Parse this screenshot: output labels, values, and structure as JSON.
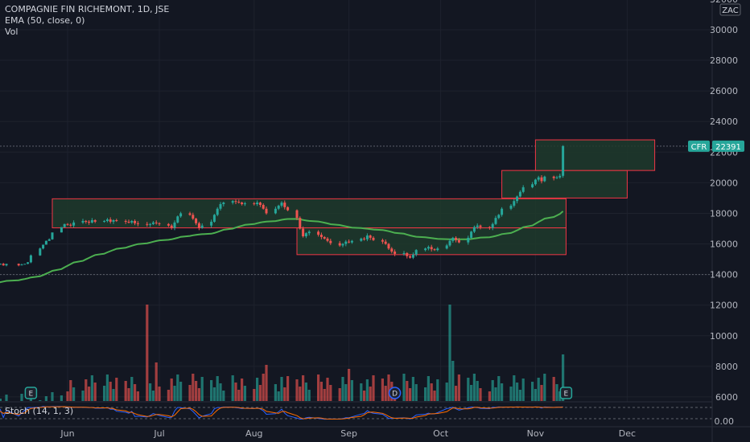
{
  "header": {
    "symbol_line": "COMPAGNIE FIN RICHEMONT, 1D, JSE",
    "ema_label": "EMA (50, close, 0)",
    "vol_label": "Vol",
    "stoch_label": "Stoch (14, 1, 3)"
  },
  "price_axis": {
    "currency": "ZAC",
    "ticks": [
      "32000",
      "30000",
      "28000",
      "26000",
      "24000",
      "22000",
      "20000",
      "18000",
      "16000",
      "14000",
      "12000",
      "10000",
      "8000",
      "6000"
    ]
  },
  "stoch_axis": {
    "ticks": [
      "0.00"
    ]
  },
  "last_price": {
    "symbol": "CFR",
    "value": "22391"
  },
  "colors": {
    "up": "#26a69a",
    "down": "#ef5350",
    "ema": "#4caf50",
    "box_stroke": "#f23645",
    "box_fill": "#1e3a2c",
    "stoch_k": "#2962ff",
    "stoch_d": "#ff6d00",
    "background": "#131722",
    "grid": "#1e222d"
  },
  "event_markers": [
    {
      "label": "E",
      "type": "earnings",
      "date": "2022-05-20"
    },
    {
      "label": "D",
      "type": "dividend",
      "date": "2022-09-16"
    },
    {
      "label": "E",
      "type": "earnings",
      "date": "2022-11-11"
    }
  ],
  "chart_data": {
    "type": "candlestick",
    "x_axis": {
      "labels": [
        "Jun",
        "Jul",
        "Aug",
        "Sep",
        "Oct",
        "Nov",
        "Dec"
      ]
    },
    "y_axis": {
      "range": [
        6000,
        32000
      ],
      "unit": "ZAC"
    },
    "range_boxes": [
      {
        "start": "2022-05-27",
        "end": "2022-11-11",
        "low": 17050,
        "high": 18950
      },
      {
        "start": "2022-08-15",
        "end": "2022-11-11",
        "low": 15300,
        "high": 17050
      },
      {
        "start": "2022-10-21",
        "end": "2022-12-01",
        "low": 19000,
        "high": 20800
      },
      {
        "start": "2022-11-01",
        "end": "2022-12-10",
        "low": 20800,
        "high": 22800
      }
    ],
    "candles_by_week": [
      {
        "week_of": "2022-05-09",
        "closes": [
          14650,
          14700,
          14600,
          14700
        ]
      },
      {
        "week_of": "2022-05-16",
        "closes": [
          14600,
          14650,
          14700,
          14800,
          15250
        ]
      },
      {
        "week_of": "2022-05-23",
        "closes": [
          15700,
          15950,
          16200,
          16300,
          16750
        ]
      },
      {
        "week_of": "2022-05-30",
        "closes": [
          17100,
          17300,
          17250,
          17200,
          17400
        ]
      },
      {
        "week_of": "2022-06-06",
        "closes": [
          17500,
          17450,
          17400,
          17550,
          17450
        ]
      },
      {
        "week_of": "2022-06-13",
        "closes": [
          17500,
          17600,
          17450,
          17550,
          17500
        ]
      },
      {
        "week_of": "2022-06-20",
        "closes": [
          17450,
          17400,
          17500,
          17350,
          17300
        ]
      },
      {
        "week_of": "2022-06-27",
        "closes": [
          17250,
          17300,
          17400,
          17350,
          17300
        ]
      },
      {
        "week_of": "2022-07-04",
        "closes": [
          17200,
          17050,
          17400,
          17800,
          18000
        ]
      },
      {
        "week_of": "2022-07-11",
        "closes": [
          17900,
          17650,
          17350,
          17050,
          17200
        ]
      },
      {
        "week_of": "2022-07-18",
        "closes": [
          17450,
          17900,
          18300,
          18600,
          18700
        ]
      },
      {
        "week_of": "2022-07-25",
        "closes": [
          18800,
          18750,
          18700,
          18600,
          18650
        ]
      },
      {
        "week_of": "2022-08-01",
        "closes": [
          18600,
          18700,
          18550,
          18300,
          18000
        ]
      },
      {
        "week_of": "2022-08-08",
        "closes": [
          18300,
          18500,
          18700,
          18400,
          18200
        ]
      },
      {
        "week_of": "2022-08-15",
        "closes": [
          17700,
          17000,
          16500,
          16700,
          16800
        ]
      },
      {
        "week_of": "2022-08-22",
        "closes": [
          16600,
          16450,
          16350,
          16200,
          16050
        ]
      },
      {
        "week_of": "2022-08-29",
        "closes": [
          15900,
          16000,
          16150,
          16100,
          16200
        ]
      },
      {
        "week_of": "2022-09-05",
        "closes": [
          16350,
          16300,
          16550,
          16400,
          16250
        ]
      },
      {
        "week_of": "2022-09-12",
        "closes": [
          16150,
          16000,
          15700,
          15500,
          15350
        ]
      },
      {
        "week_of": "2022-09-19",
        "closes": [
          15400,
          15200,
          15100,
          15300,
          15600
        ]
      },
      {
        "week_of": "2022-09-26",
        "closes": [
          15700,
          15800,
          15650,
          15600,
          15700
        ]
      },
      {
        "week_of": "2022-10-03",
        "closes": [
          15900,
          16200,
          16400,
          16250,
          16100
        ]
      },
      {
        "week_of": "2022-10-10",
        "closes": [
          16400,
          16800,
          17100,
          17200,
          17100
        ]
      },
      {
        "week_of": "2022-10-17",
        "closes": [
          17050,
          17300,
          17700,
          17900,
          18300
        ]
      },
      {
        "week_of": "2022-10-24",
        "closes": [
          18500,
          18800,
          19100,
          19400,
          19700
        ]
      },
      {
        "week_of": "2022-10-31",
        "closes": [
          19900,
          20200,
          20350,
          20100,
          20400
        ]
      },
      {
        "week_of": "2022-11-07",
        "closes": [
          20300,
          20350,
          20450,
          22391
        ]
      }
    ]
  }
}
